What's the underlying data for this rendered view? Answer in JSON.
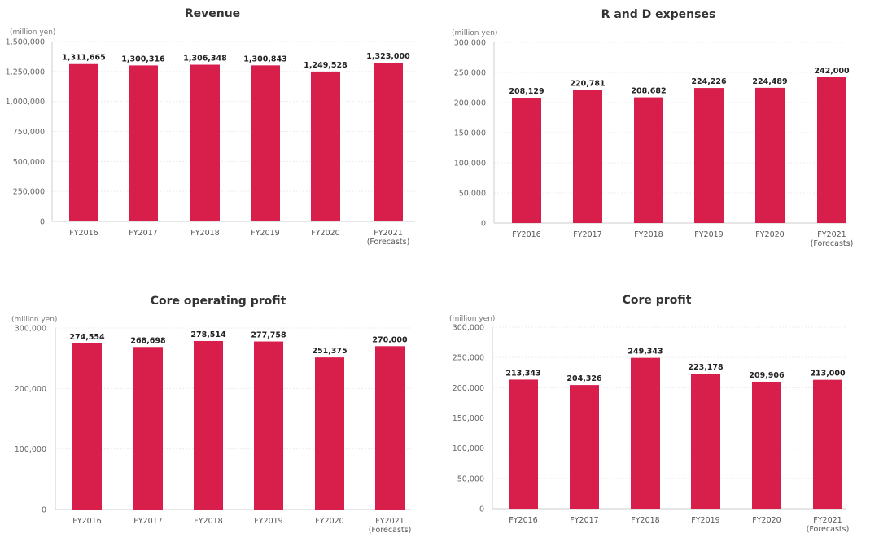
{
  "chart_data": [
    {
      "type": "bar",
      "title": "Revenue",
      "ylabel": "(million yen)",
      "xlabel": "",
      "categories": [
        "FY2016",
        "FY2017",
        "FY2018",
        "FY2019",
        "FY2020",
        "FY2021\n(Forecasts)"
      ],
      "values": [
        1311665,
        1300316,
        1306348,
        1300843,
        1249528,
        1323000
      ],
      "value_labels": [
        "1,311,665",
        "1,300,316",
        "1,306,348",
        "1,300,843",
        "1,249,528",
        "1,323,000"
      ],
      "ylim": [
        0,
        1500000
      ],
      "yticks": [
        0,
        250000,
        500000,
        750000,
        1000000,
        1250000,
        1500000
      ],
      "ytick_labels": [
        "0",
        "250,000",
        "500,000",
        "750,000",
        "1,000,000",
        "1,250,000",
        "1,500,000"
      ],
      "grid": true,
      "color": "#d81e4b"
    },
    {
      "type": "bar",
      "title": "R and D expenses",
      "ylabel": "(million yen)",
      "xlabel": "",
      "categories": [
        "FY2016",
        "FY2017",
        "FY2018",
        "FY2019",
        "FY2020",
        "FY2021\n(Forecasts)"
      ],
      "values": [
        208129,
        220781,
        208682,
        224226,
        224489,
        242000
      ],
      "value_labels": [
        "208,129",
        "220,781",
        "208,682",
        "224,226",
        "224,489",
        "242,000"
      ],
      "ylim": [
        0,
        300000
      ],
      "yticks": [
        0,
        50000,
        100000,
        150000,
        200000,
        250000,
        300000
      ],
      "ytick_labels": [
        "0",
        "50,000",
        "100,000",
        "150,000",
        "200,000",
        "250,000",
        "300,000"
      ],
      "grid": true,
      "color": "#d81e4b"
    },
    {
      "type": "bar",
      "title": "Core operating profit",
      "ylabel": "(million yen)",
      "xlabel": "",
      "categories": [
        "FY2016",
        "FY2017",
        "FY2018",
        "FY2019",
        "FY2020",
        "FY2021\n(Forecasts)"
      ],
      "values": [
        274554,
        268698,
        278514,
        277758,
        251375,
        270000
      ],
      "value_labels": [
        "274,554",
        "268,698",
        "278,514",
        "277,758",
        "251,375",
        "270,000"
      ],
      "ylim": [
        0,
        300000
      ],
      "yticks": [
        0,
        100000,
        200000,
        300000
      ],
      "ytick_labels": [
        "0",
        "100,000",
        "200,000",
        "300,000"
      ],
      "grid": true,
      "color": "#d81e4b"
    },
    {
      "type": "bar",
      "title": "Core profit",
      "ylabel": "(million yen)",
      "xlabel": "",
      "categories": [
        "FY2016",
        "FY2017",
        "FY2018",
        "FY2019",
        "FY2020",
        "FY2021\n(Forecasts)"
      ],
      "values": [
        213343,
        204326,
        249343,
        223178,
        209906,
        213000
      ],
      "value_labels": [
        "213,343",
        "204,326",
        "249,343",
        "223,178",
        "209,906",
        "213,000"
      ],
      "ylim": [
        0,
        300000
      ],
      "yticks": [
        0,
        50000,
        100000,
        150000,
        200000,
        250000,
        300000
      ],
      "ytick_labels": [
        "0",
        "50,000",
        "100,000",
        "150,000",
        "200,000",
        "250,000",
        "300,000"
      ],
      "grid": true,
      "color": "#d81e4b"
    }
  ]
}
